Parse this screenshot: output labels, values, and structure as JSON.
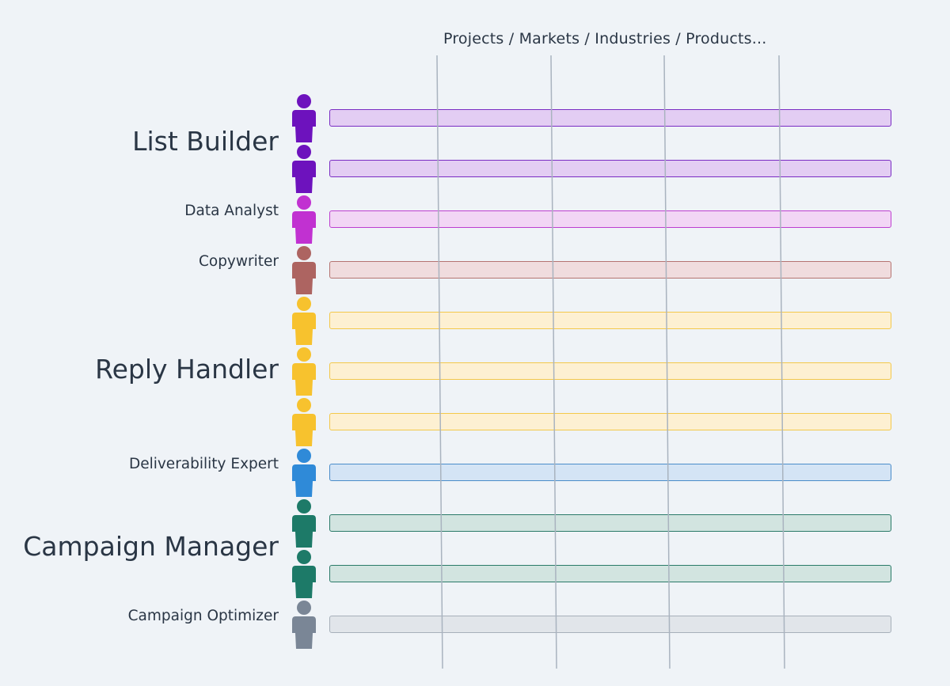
{
  "header": {
    "title": "Projects / Markets / Industries / Products..."
  },
  "columns_count": 4,
  "roles": [
    {
      "name": "List Builder",
      "size": "big",
      "agents": 2,
      "color": "#6d12bd",
      "bar_fill": "#e3cdf3",
      "bar_border": "#7a2cc3"
    },
    {
      "name": "Data Analyst",
      "size": "small",
      "agents": 1,
      "color": "#c131d1",
      "bar_fill": "#f2d6f5",
      "bar_border": "#bd3fd0"
    },
    {
      "name": "Copywriter",
      "size": "small",
      "agents": 1,
      "color": "#ad6461",
      "bar_fill": "#f0dcde",
      "bar_border": "#b57471"
    },
    {
      "name": "Reply Handler",
      "size": "big",
      "agents": 3,
      "color": "#f7c22e",
      "bar_fill": "#fdf0d2",
      "bar_border": "#f3c84a"
    },
    {
      "name": "Deliverability Expert",
      "size": "small",
      "agents": 1,
      "color": "#2f8ad8",
      "bar_fill": "#d4e4f5",
      "bar_border": "#4a8cc9"
    },
    {
      "name": "Campaign Manager",
      "size": "big",
      "agents": 2,
      "color": "#1d7a68",
      "bar_fill": "#d2e4e0",
      "bar_border": "#2a7a68"
    },
    {
      "name": "Campaign Optimizer",
      "size": "small",
      "agents": 1,
      "color": "#7a8696",
      "bar_fill": "#e1e5ea",
      "bar_border": "#a7b0ba"
    }
  ]
}
